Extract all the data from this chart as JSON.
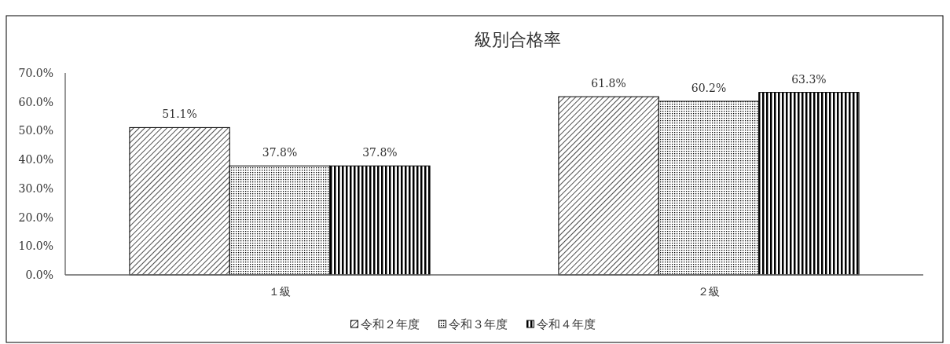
{
  "chart_data": {
    "type": "bar",
    "title": "級別合格率",
    "categories": [
      "１級",
      "２級"
    ],
    "series": [
      {
        "name": "令和２年度",
        "color": "#000000",
        "values": [
          51.1,
          61.8
        ],
        "value_labels": [
          "51.1%",
          "61.8%"
        ]
      },
      {
        "name": "令和３年度",
        "color": "#000000",
        "values": [
          37.8,
          60.2
        ],
        "value_labels": [
          "37.8%",
          "60.2%"
        ]
      },
      {
        "name": "令和４年度",
        "color": "#000000",
        "values": [
          37.8,
          63.3
        ],
        "value_labels": [
          "37.8%",
          "63.3%"
        ]
      }
    ],
    "ylim": [
      0,
      70
    ],
    "yticks": [
      {
        "value": 0,
        "label": "0.0%"
      },
      {
        "value": 10,
        "label": "10.0%"
      },
      {
        "value": 20,
        "label": "20.0%"
      },
      {
        "value": 30,
        "label": "30.0%"
      },
      {
        "value": 40,
        "label": "40.0%"
      },
      {
        "value": 50,
        "label": "50.0%"
      },
      {
        "value": 60,
        "label": "60.0%"
      },
      {
        "value": 70,
        "label": "70.0%"
      }
    ],
    "grid": false,
    "legend": "bottom"
  }
}
